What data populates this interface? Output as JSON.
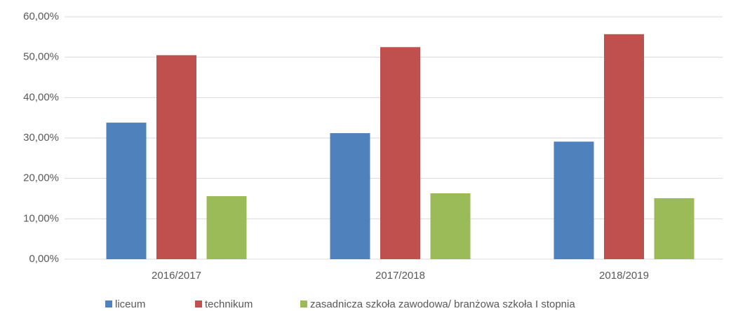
{
  "chart_data": {
    "type": "bar",
    "categories": [
      "2016/2017",
      "2017/2018",
      "2018/2019"
    ],
    "series": [
      {
        "name": "liceum",
        "color": "#4f81bd",
        "values": [
          33.8,
          31.2,
          29.1
        ]
      },
      {
        "name": "technikum",
        "color": "#c0504d",
        "values": [
          50.5,
          52.5,
          55.7
        ]
      },
      {
        "name": "zasadnicza szkoła zawodowa/ branżowa szkoła I stopnia",
        "color": "#9bbb59",
        "values": [
          15.6,
          16.3,
          15.1
        ]
      }
    ],
    "ylim": [
      0,
      60
    ],
    "yticks": [
      {
        "value": 0,
        "label": "0,00%"
      },
      {
        "value": 10,
        "label": "10,00%"
      },
      {
        "value": 20,
        "label": "20,00%"
      },
      {
        "value": 30,
        "label": "30,00%"
      },
      {
        "value": 40,
        "label": "40,00%"
      },
      {
        "value": 50,
        "label": "50,00%"
      },
      {
        "value": 60,
        "label": "60,00%"
      }
    ],
    "grid": true,
    "legend": "bottom"
  }
}
